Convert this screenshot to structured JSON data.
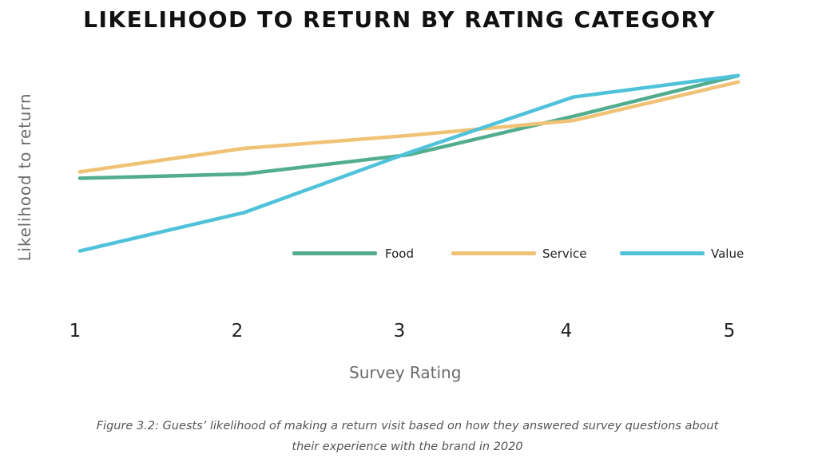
{
  "chart_data": {
    "type": "line",
    "title": "LIKELIHOOD TO RETURN BY RATING CATEGORY",
    "xlabel": "Survey Rating",
    "ylabel": "Likelihood to return",
    "x": [
      1,
      2,
      3,
      4,
      5
    ],
    "x_tick_labels": [
      "1",
      "2",
      "3",
      "4",
      "5"
    ],
    "ylim": [
      0,
      100
    ],
    "y_ticks_shown": false,
    "grid": false,
    "legend_position": "inside-right",
    "series": [
      {
        "name": "Food",
        "color": "#52ad8f",
        "values": [
          45,
          47,
          56,
          74,
          93
        ]
      },
      {
        "name": "Service",
        "color": "#efc276",
        "values": [
          48,
          59,
          65,
          72,
          90
        ]
      },
      {
        "name": "Value",
        "color": "#4fc2d9",
        "values": [
          11,
          29,
          57,
          83,
          93
        ]
      }
    ]
  },
  "caption": {
    "line1": "Figure 3.2: Guests’ likelihood of making a return visit based on how they answered survey questions about",
    "line2": "their experience with the brand in 2020"
  }
}
